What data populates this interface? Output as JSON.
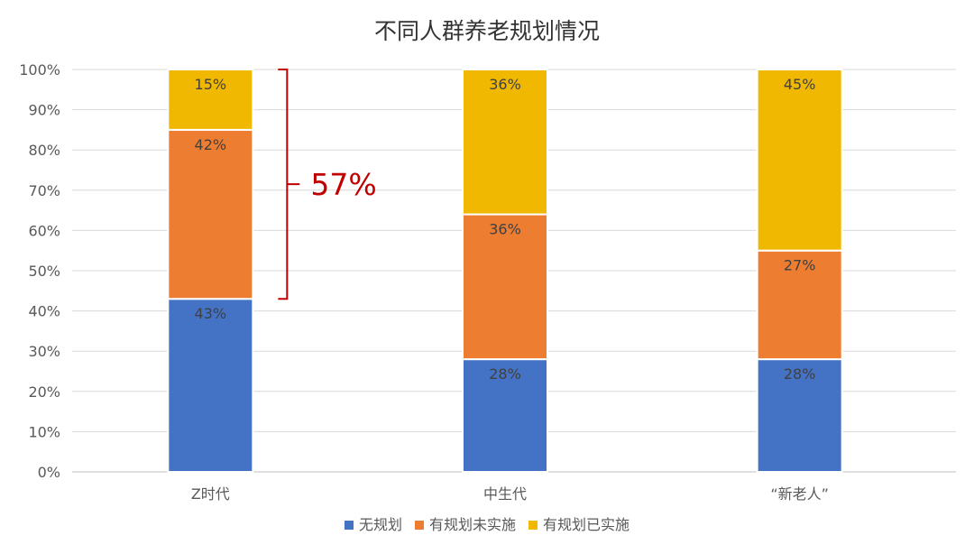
{
  "chart_data": {
    "type": "bar",
    "stacked": true,
    "title": "不同人群养老规划情况",
    "categories": [
      "Z时代",
      "中生代",
      "“新老人”"
    ],
    "series": [
      {
        "name": "无规划",
        "values": [
          43,
          28,
          28
        ],
        "labels": [
          "43%",
          "28%",
          "28%"
        ],
        "color": "#4472C4"
      },
      {
        "name": "有规划未实施",
        "values": [
          42,
          36,
          27
        ],
        "labels": [
          "42%",
          "36%",
          "27%"
        ],
        "color": "#ED7D31"
      },
      {
        "name": "有规划已实施",
        "values": [
          15,
          36,
          45
        ],
        "labels": [
          "15%",
          "36%",
          "45%"
        ],
        "color": "#F0B800"
      }
    ],
    "ylim": [
      0,
      100
    ],
    "yticks": [
      "0%",
      "10%",
      "20%",
      "30%",
      "40%",
      "50%",
      "60%",
      "70%",
      "80%",
      "90%",
      "100%"
    ],
    "grid": true,
    "legend_position": "bottom",
    "annotation": {
      "text": "57%",
      "category": "Z时代",
      "range": [
        43,
        100
      ],
      "color": "#C00000"
    },
    "colors": {
      "grid": "#D9D9D9",
      "axis": "#BFBFBF",
      "text": "#595959",
      "title": "#333333",
      "data_label": "#404040"
    }
  }
}
